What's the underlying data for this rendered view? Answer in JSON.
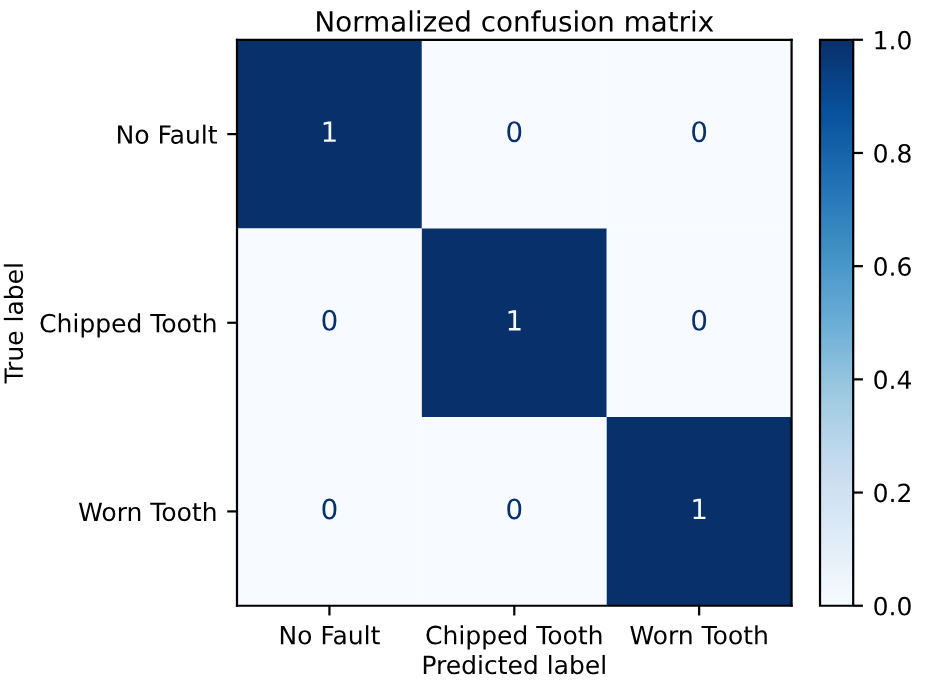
{
  "chart_data": {
    "type": "heatmap",
    "title": "Normalized confusion matrix",
    "xlabel": "Predicted label",
    "ylabel": "True label",
    "categories": [
      "No Fault",
      "Chipped Tooth",
      "Worn Tooth"
    ],
    "y_categories": [
      "No Fault",
      "Chipped Tooth",
      "Worn Tooth"
    ],
    "cells": [
      [
        1,
        0,
        0
      ],
      [
        0,
        1,
        0
      ],
      [
        0,
        0,
        1
      ]
    ],
    "data_labels": true,
    "clim": [
      0.0,
      1.0
    ],
    "cticks": [
      {
        "value": 0.0,
        "label": "0.0"
      },
      {
        "value": 0.2,
        "label": "0.2"
      },
      {
        "value": 0.4,
        "label": "0.4"
      },
      {
        "value": 0.6,
        "label": "0.6"
      },
      {
        "value": 0.8,
        "label": "0.8"
      },
      {
        "value": 1.0,
        "label": "1.0"
      }
    ],
    "grid": false
  }
}
